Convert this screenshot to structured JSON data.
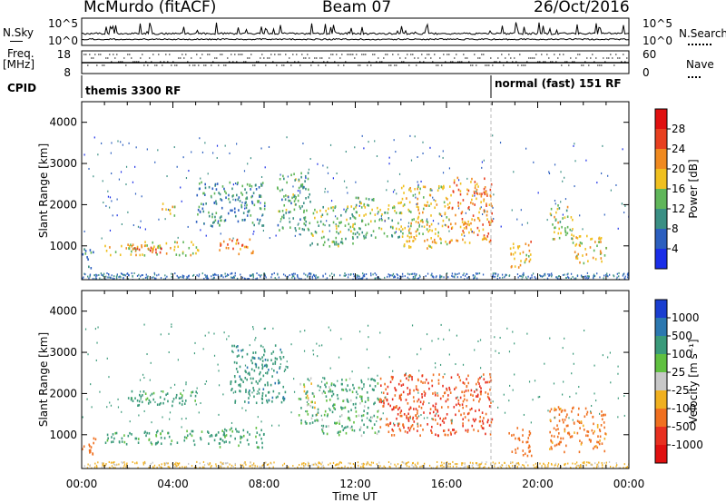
{
  "header": {
    "radar": "McMurdo (fitACF)",
    "beam": "Beam 07",
    "date": "26/Oct/2016"
  },
  "top_panels": {
    "nsky_label": "N.Sky",
    "nsearch_label": "N.Search",
    "freq_label": "Freq.",
    "freq_unit": "[MHz]",
    "nave_label": "Nave",
    "cpid_label": "CPID",
    "noise_ticks_left": [
      "10^5",
      "10^0"
    ],
    "noise_ticks_right": [
      "10^5",
      "10^0"
    ],
    "freq_ticks_left": [
      "18",
      "8"
    ],
    "nave_ticks_right": [
      "60",
      "0"
    ],
    "cpid_segments": [
      {
        "label": "themis 3300 RF",
        "start_hour": 0.0,
        "end_hour": 18.0
      },
      {
        "label": "normal (fast) 151 RF",
        "start_hour": 18.0,
        "end_hour": 24.0
      }
    ]
  },
  "axes": {
    "ylabel": "Slant Range [km]",
    "xlabel": "Time UT",
    "x_ticks": [
      "00:00",
      "04:00",
      "08:00",
      "12:00",
      "16:00",
      "20:00",
      "00:00"
    ],
    "y_ticks": [
      "1000",
      "2000",
      "3000",
      "4000"
    ]
  },
  "colorbars": {
    "power": {
      "label": "Power [dB]",
      "ticks": [
        "4",
        "8",
        "12",
        "16",
        "20",
        "24",
        "28"
      ],
      "colors": [
        "#1a2ee8",
        "#2c5fbf",
        "#3a8f84",
        "#60b65a",
        "#f0c020",
        "#f08a20",
        "#e84020",
        "#e01010"
      ]
    },
    "velocity": {
      "label": "Velocity [m s⁻¹]",
      "ticks": [
        "1000",
        "500",
        "100",
        "25",
        "-25",
        "-100",
        "-500",
        "-1000"
      ],
      "colors": [
        "#1a3ed0",
        "#2c78b0",
        "#3a9a7a",
        "#60c040",
        "#c8c8c8",
        "#f0b020",
        "#f07020",
        "#e83020",
        "#e01010"
      ]
    }
  },
  "chart_data": [
    {
      "type": "heatmap",
      "title": "Power",
      "x_range": [
        0,
        24
      ],
      "y_range": [
        180,
        4500
      ],
      "colorbar_label": "Power [dB]",
      "colorbar_range": [
        0,
        32
      ],
      "regions": [
        {
          "t0": 0.0,
          "t1": 0.5,
          "r0": 450,
          "r1": 950,
          "value": 10
        },
        {
          "t0": 1.0,
          "t1": 5.2,
          "r0": 780,
          "r1": 1120,
          "value": 18
        },
        {
          "t0": 2.0,
          "t1": 3.5,
          "r0": 850,
          "r1": 1050,
          "value": 24
        },
        {
          "t0": 3.5,
          "t1": 4.2,
          "r0": 1750,
          "r1": 2050,
          "value": 20
        },
        {
          "t0": 6.0,
          "t1": 7.5,
          "r0": 820,
          "r1": 1200,
          "value": 22
        },
        {
          "t0": 5.0,
          "t1": 8.0,
          "r0": 1500,
          "r1": 2600,
          "value": 10
        },
        {
          "t0": 8.5,
          "t1": 10.0,
          "r0": 1400,
          "r1": 2800,
          "value": 12
        },
        {
          "t0": 10.0,
          "t1": 12.0,
          "r0": 1000,
          "r1": 2000,
          "value": 14
        },
        {
          "t0": 12.0,
          "t1": 14.0,
          "r0": 1200,
          "r1": 2200,
          "value": 14
        },
        {
          "t0": 14.0,
          "t1": 16.0,
          "r0": 950,
          "r1": 2500,
          "value": 18
        },
        {
          "t0": 16.0,
          "t1": 18.0,
          "r0": 1100,
          "r1": 2700,
          "value": 22
        },
        {
          "t0": 18.7,
          "t1": 19.7,
          "r0": 500,
          "r1": 1200,
          "value": 20
        },
        {
          "t0": 20.5,
          "t1": 21.5,
          "r0": 1150,
          "r1": 2050,
          "value": 16
        },
        {
          "t0": 21.5,
          "t1": 23.0,
          "r0": 600,
          "r1": 1300,
          "value": 18
        }
      ]
    },
    {
      "type": "heatmap",
      "title": "Velocity",
      "x_range": [
        0,
        24
      ],
      "y_range": [
        180,
        4500
      ],
      "colorbar_label": "Velocity [m s⁻¹]",
      "colorbar_range": [
        -1000,
        1000
      ],
      "regions": [
        {
          "t0": 0.0,
          "t1": 0.6,
          "r0": 450,
          "r1": 950,
          "value": -300
        },
        {
          "t0": 1.0,
          "t1": 6.5,
          "r0": 780,
          "r1": 1120,
          "value": 200
        },
        {
          "t0": 2.0,
          "t1": 5.0,
          "r0": 1700,
          "r1": 2100,
          "value": 200
        },
        {
          "t0": 6.0,
          "t1": 8.0,
          "r0": 700,
          "r1": 1200,
          "value": 200
        },
        {
          "t0": 6.5,
          "t1": 9.0,
          "r0": 1800,
          "r1": 3200,
          "value": 400
        },
        {
          "t0": 9.5,
          "t1": 10.5,
          "r0": 1300,
          "r1": 2400,
          "value": 60
        },
        {
          "t0": 10.5,
          "t1": 13.0,
          "r0": 1000,
          "r1": 2400,
          "value": 150
        },
        {
          "t0": 13.0,
          "t1": 18.0,
          "r0": 1000,
          "r1": 2500,
          "value": -500
        },
        {
          "t0": 18.7,
          "t1": 19.7,
          "r0": 500,
          "r1": 1200,
          "value": -300
        },
        {
          "t0": 20.5,
          "t1": 23.0,
          "r0": 600,
          "r1": 1700,
          "value": -200
        }
      ]
    }
  ]
}
